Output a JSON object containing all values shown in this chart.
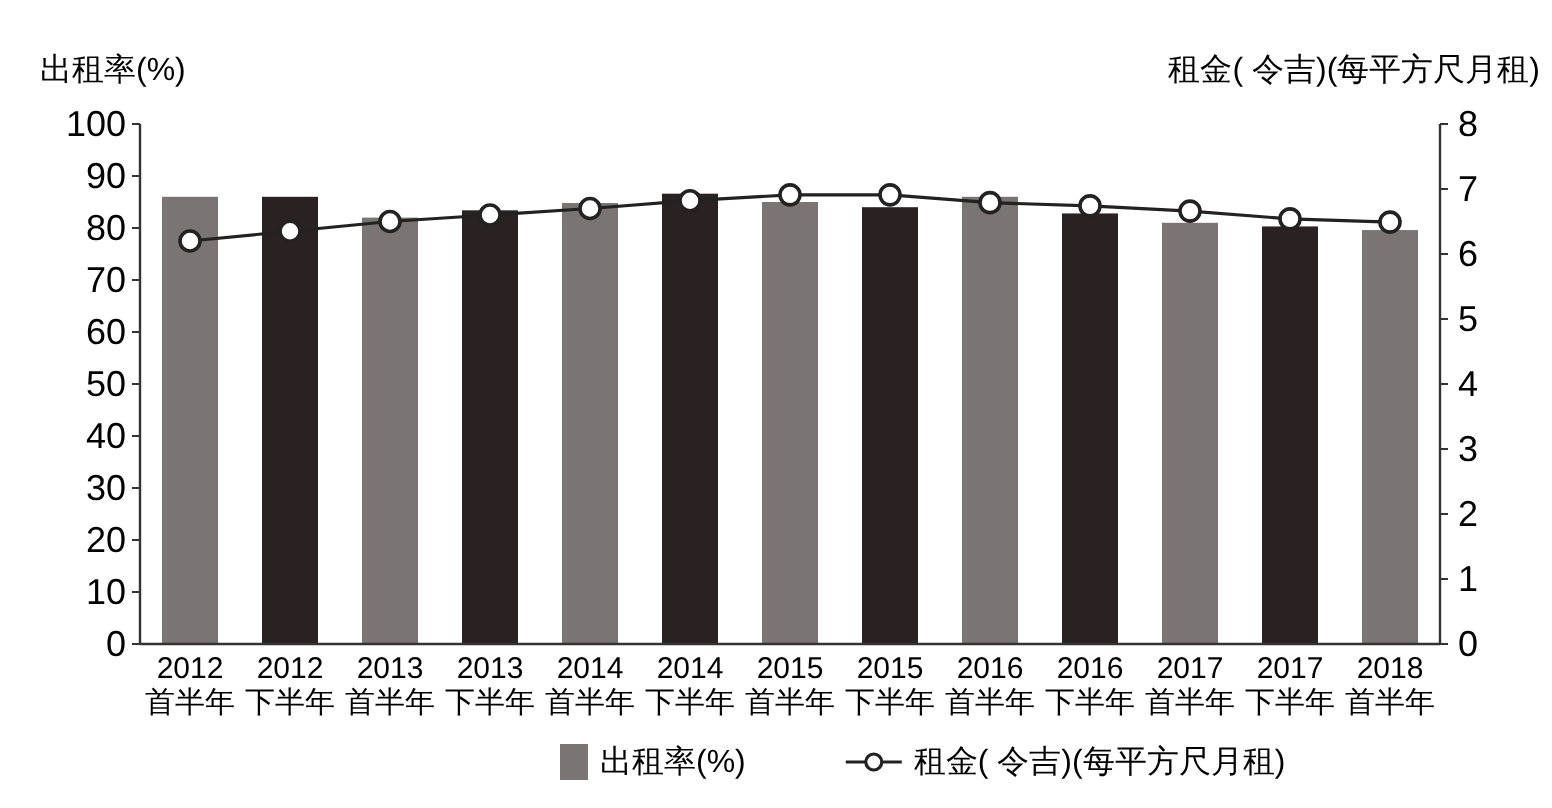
{
  "chart_data": {
    "type": "bar",
    "categories": [
      "2012\n首半年",
      "2012\n下半年",
      "2013\n首半年",
      "2013\n下半年",
      "2014\n首半年",
      "2014\n下半年",
      "2015\n首半年",
      "2015\n下半年",
      "2016\n首半年",
      "2016\n下半年",
      "2017\n首半年",
      "2017\n下半年",
      "2018\n首半年"
    ],
    "ylabel": "出租率(%)",
    "y2label": "租金( 令吉)(每平方尺月租)",
    "series": [
      {
        "name": "出租率(%)",
        "colors": [
          "#7a7474",
          "#2a2222",
          "#7a7474",
          "#2a2222",
          "#7a7474",
          "#2a2222",
          "#7a7474",
          "#2a2222",
          "#7a7474",
          "#2a2222",
          "#7a7474",
          "#2a2222",
          "#7a7474"
        ],
        "values": [
          86,
          86,
          82,
          83.4,
          84.8,
          86.6,
          85,
          84,
          86,
          82.8,
          81,
          80.3,
          79.6
        ]
      },
      {
        "name": "租金( 令吉)(每平方尺月租)",
        "type": "line",
        "axis": "y2",
        "color": "#222222",
        "marker": "circle",
        "values": [
          6.2,
          6.35,
          6.5,
          6.6,
          6.7,
          6.82,
          6.91,
          6.91,
          6.79,
          6.74,
          6.66,
          6.54,
          6.49
        ]
      }
    ],
    "ylim": [
      0,
      100
    ],
    "yticks": [
      0,
      10,
      20,
      30,
      40,
      50,
      60,
      70,
      80,
      90,
      100
    ],
    "y2lim": [
      0,
      8
    ],
    "y2ticks": [
      0,
      1,
      2,
      3,
      4,
      5,
      6,
      7,
      8
    ],
    "legend": "bottom",
    "grid": false
  }
}
